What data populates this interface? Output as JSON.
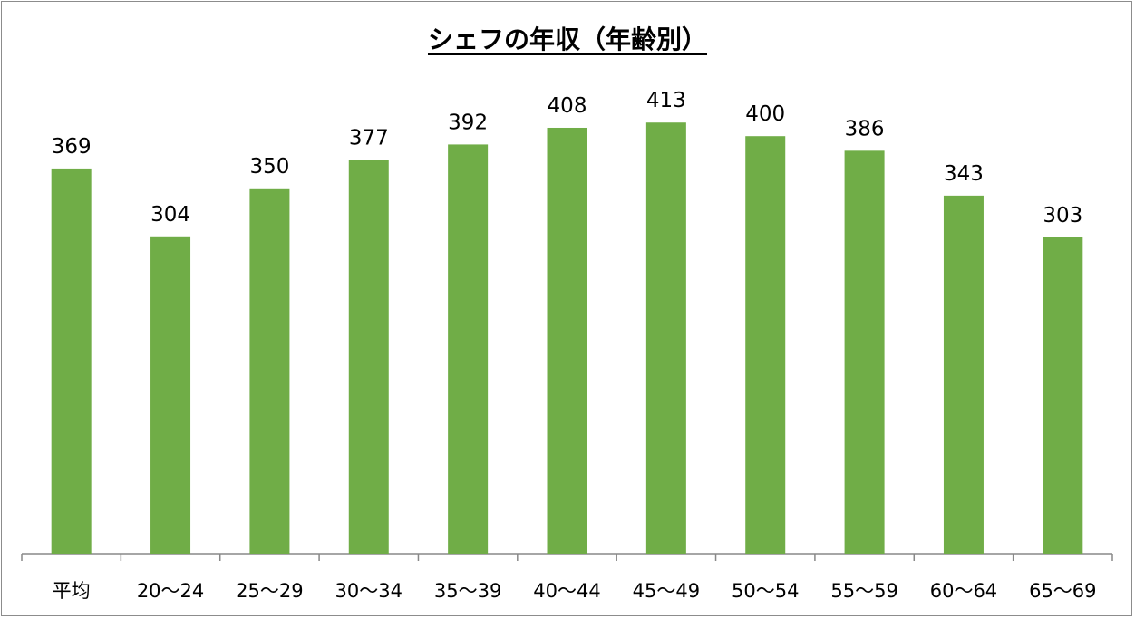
{
  "chart_data": {
    "type": "bar",
    "title": "シェフの年収（年齢別）",
    "categories": [
      "平均",
      "20〜24",
      "25〜29",
      "30〜34",
      "35〜39",
      "40〜44",
      "45〜49",
      "50〜54",
      "55〜59",
      "60〜64",
      "65〜69"
    ],
    "values": [
      369,
      304,
      350,
      377,
      392,
      408,
      413,
      400,
      386,
      343,
      303
    ],
    "ylim": [
      0,
      450
    ],
    "grid": false,
    "legend": "none",
    "data_labels": true,
    "bar_color": "#70AD47"
  }
}
